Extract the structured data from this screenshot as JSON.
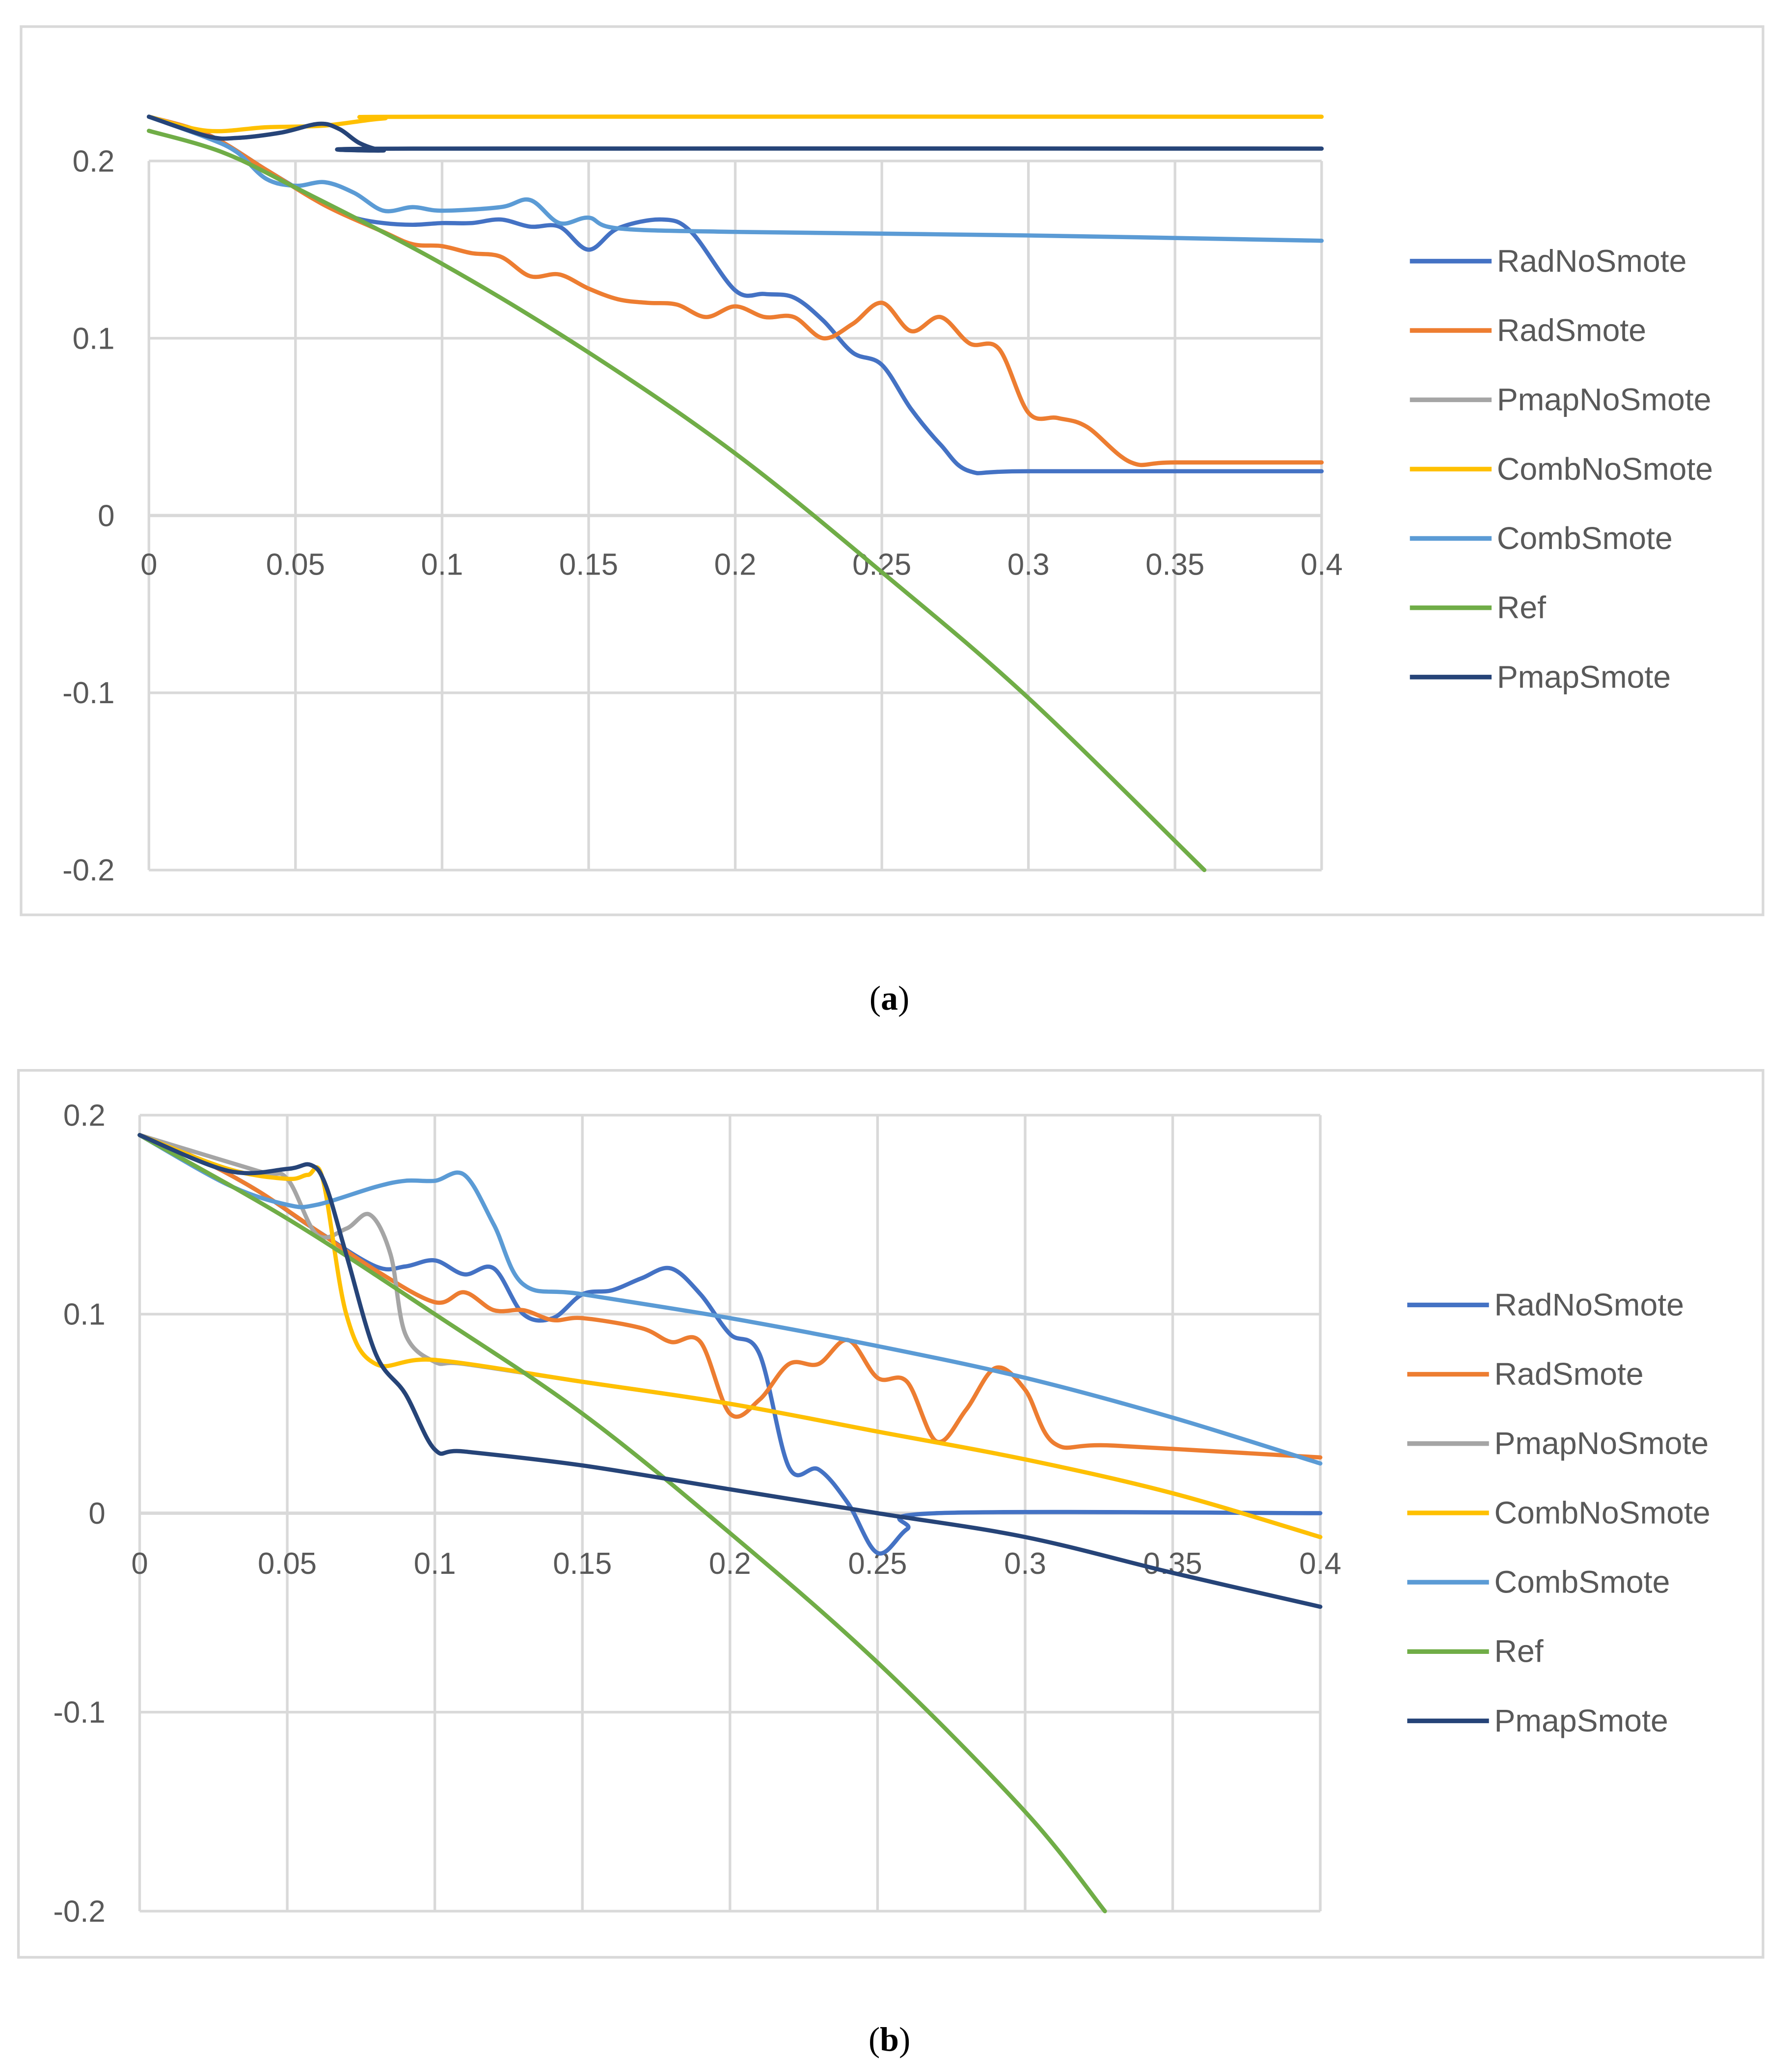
{
  "chart_data": [
    {
      "type": "line",
      "caption_open": "(",
      "caption_label": "a",
      "caption_close": ")",
      "xlim": [
        0,
        0.4
      ],
      "ylim": [
        -0.2,
        0.2
      ],
      "x_ticks": [
        "0",
        "0.05",
        "0.1",
        "0.15",
        "0.2",
        "0.25",
        "0.3",
        "0.35",
        "0.4"
      ],
      "x_tick_values": [
        0,
        0.05,
        0.1,
        0.15,
        0.2,
        0.25,
        0.3,
        0.35,
        0.4
      ],
      "y_ticks": [
        "0.2",
        "0.1",
        "0",
        "-0.1",
        "-0.2"
      ],
      "y_tick_values": [
        0.2,
        0.1,
        0,
        -0.1,
        -0.2
      ],
      "grid": true,
      "legend_position": "right",
      "series": [
        {
          "name": "RadNoSmote",
          "color": "#4472C4",
          "points": [
            [
              0,
              0.225
            ],
            [
              0.02,
              0.215
            ],
            [
              0.04,
              0.195
            ],
            [
              0.05,
              0.185
            ],
            [
              0.06,
              0.175
            ],
            [
              0.07,
              0.168
            ],
            [
              0.08,
              0.165
            ],
            [
              0.09,
              0.164
            ],
            [
              0.1,
              0.165
            ],
            [
              0.11,
              0.165
            ],
            [
              0.12,
              0.167
            ],
            [
              0.13,
              0.163
            ],
            [
              0.14,
              0.163
            ],
            [
              0.15,
              0.15
            ],
            [
              0.16,
              0.162
            ],
            [
              0.175,
              0.167
            ],
            [
              0.185,
              0.16
            ],
            [
              0.2,
              0.127
            ],
            [
              0.21,
              0.125
            ],
            [
              0.22,
              0.123
            ],
            [
              0.23,
              0.11
            ],
            [
              0.24,
              0.092
            ],
            [
              0.25,
              0.085
            ],
            [
              0.26,
              0.06
            ],
            [
              0.27,
              0.04
            ],
            [
              0.28,
              0.025
            ],
            [
              0.3,
              0.025
            ],
            [
              0.4,
              0.025
            ]
          ]
        },
        {
          "name": "RadSmote",
          "color": "#ED7D31",
          "points": [
            [
              0,
              0.225
            ],
            [
              0.02,
              0.215
            ],
            [
              0.04,
              0.195
            ],
            [
              0.06,
              0.175
            ],
            [
              0.08,
              0.16
            ],
            [
              0.09,
              0.153
            ],
            [
              0.1,
              0.152
            ],
            [
              0.11,
              0.148
            ],
            [
              0.12,
              0.146
            ],
            [
              0.13,
              0.135
            ],
            [
              0.14,
              0.136
            ],
            [
              0.15,
              0.128
            ],
            [
              0.16,
              0.122
            ],
            [
              0.17,
              0.12
            ],
            [
              0.18,
              0.119
            ],
            [
              0.19,
              0.112
            ],
            [
              0.2,
              0.118
            ],
            [
              0.21,
              0.112
            ],
            [
              0.22,
              0.112
            ],
            [
              0.23,
              0.1
            ],
            [
              0.24,
              0.108
            ],
            [
              0.25,
              0.12
            ],
            [
              0.26,
              0.104
            ],
            [
              0.27,
              0.112
            ],
            [
              0.28,
              0.097
            ],
            [
              0.29,
              0.094
            ],
            [
              0.3,
              0.058
            ],
            [
              0.31,
              0.055
            ],
            [
              0.32,
              0.05
            ],
            [
              0.335,
              0.03
            ],
            [
              0.35,
              0.03
            ],
            [
              0.4,
              0.03
            ]
          ]
        },
        {
          "name": "PmapNoSmote",
          "color": "#A5A5A5",
          "points": [
            [
              0,
              0.225
            ],
            [
              0.02,
              0.214
            ],
            [
              0.03,
              0.213
            ],
            [
              0.045,
              0.216
            ],
            [
              0.058,
              0.221
            ],
            [
              0.065,
              0.218
            ],
            [
              0.072,
              0.21
            ],
            [
              0.08,
              0.206
            ],
            [
              0.09,
              0.207
            ],
            [
              0.4,
              0.207
            ]
          ]
        },
        {
          "name": "CombNoSmote",
          "color": "#FFC000",
          "points": [
            [
              0,
              0.225
            ],
            [
              0.02,
              0.217
            ],
            [
              0.04,
              0.219
            ],
            [
              0.06,
              0.22
            ],
            [
              0.08,
              0.224
            ],
            [
              0.1,
              0.225
            ],
            [
              0.4,
              0.225
            ]
          ]
        },
        {
          "name": "CombSmote",
          "color": "#5B9BD5",
          "points": [
            [
              0,
              0.225
            ],
            [
              0.02,
              0.213
            ],
            [
              0.03,
              0.205
            ],
            [
              0.04,
              0.19
            ],
            [
              0.05,
              0.186
            ],
            [
              0.06,
              0.188
            ],
            [
              0.07,
              0.182
            ],
            [
              0.08,
              0.172
            ],
            [
              0.09,
              0.174
            ],
            [
              0.1,
              0.172
            ],
            [
              0.12,
              0.174
            ],
            [
              0.13,
              0.178
            ],
            [
              0.14,
              0.165
            ],
            [
              0.15,
              0.168
            ],
            [
              0.16,
              0.162
            ],
            [
              0.2,
              0.16
            ],
            [
              0.3,
              0.158
            ],
            [
              0.4,
              0.155
            ]
          ]
        },
        {
          "name": "Ref",
          "color": "#70AD47",
          "points": [
            [
              0,
              0.217
            ],
            [
              0.025,
              0.205
            ],
            [
              0.05,
              0.185
            ],
            [
              0.1,
              0.142
            ],
            [
              0.15,
              0.092
            ],
            [
              0.2,
              0.035
            ],
            [
              0.25,
              -0.032
            ],
            [
              0.3,
              -0.103
            ],
            [
              0.36,
              -0.2
            ]
          ]
        },
        {
          "name": "PmapSmote",
          "color": "#264478",
          "points": [
            [
              0,
              0.225
            ],
            [
              0.02,
              0.214
            ],
            [
              0.03,
              0.213
            ],
            [
              0.045,
              0.216
            ],
            [
              0.058,
              0.221
            ],
            [
              0.065,
              0.218
            ],
            [
              0.072,
              0.21
            ],
            [
              0.08,
              0.206
            ],
            [
              0.09,
              0.207
            ],
            [
              0.4,
              0.207
            ]
          ]
        }
      ]
    },
    {
      "type": "line",
      "caption_open": "(",
      "caption_label": "b",
      "caption_close": ")",
      "xlim": [
        0,
        0.4
      ],
      "ylim": [
        -0.2,
        0.2
      ],
      "x_ticks": [
        "0",
        "0.05",
        "0.1",
        "0.15",
        "0.2",
        "0.25",
        "0.3",
        "0.35",
        "0.4"
      ],
      "x_tick_values": [
        0,
        0.05,
        0.1,
        0.15,
        0.2,
        0.25,
        0.3,
        0.35,
        0.4
      ],
      "y_ticks": [
        "0.2",
        "0.1",
        "0",
        "-0.1",
        "-0.2"
      ],
      "y_tick_values": [
        0.2,
        0.1,
        0,
        -0.1,
        -0.2
      ],
      "grid": true,
      "legend_position": "right",
      "series": [
        {
          "name": "RadNoSmote",
          "color": "#4472C4",
          "points": [
            [
              0,
              0.19
            ],
            [
              0.02,
              0.178
            ],
            [
              0.04,
              0.162
            ],
            [
              0.06,
              0.142
            ],
            [
              0.08,
              0.124
            ],
            [
              0.09,
              0.124
            ],
            [
              0.1,
              0.127
            ],
            [
              0.11,
              0.12
            ],
            [
              0.12,
              0.123
            ],
            [
              0.13,
              0.1
            ],
            [
              0.14,
              0.098
            ],
            [
              0.15,
              0.11
            ],
            [
              0.16,
              0.112
            ],
            [
              0.17,
              0.118
            ],
            [
              0.18,
              0.123
            ],
            [
              0.19,
              0.11
            ],
            [
              0.2,
              0.09
            ],
            [
              0.21,
              0.08
            ],
            [
              0.22,
              0.023
            ],
            [
              0.23,
              0.022
            ],
            [
              0.24,
              0.005
            ],
            [
              0.25,
              -0.02
            ],
            [
              0.26,
              -0.008
            ],
            [
              0.27,
              0
            ],
            [
              0.4,
              0
            ]
          ]
        },
        {
          "name": "RadSmote",
          "color": "#ED7D31",
          "points": [
            [
              0,
              0.19
            ],
            [
              0.02,
              0.178
            ],
            [
              0.04,
              0.162
            ],
            [
              0.06,
              0.142
            ],
            [
              0.08,
              0.122
            ],
            [
              0.1,
              0.106
            ],
            [
              0.11,
              0.111
            ],
            [
              0.12,
              0.102
            ],
            [
              0.13,
              0.102
            ],
            [
              0.14,
              0.097
            ],
            [
              0.15,
              0.098
            ],
            [
              0.17,
              0.093
            ],
            [
              0.18,
              0.086
            ],
            [
              0.19,
              0.086
            ],
            [
              0.2,
              0.05
            ],
            [
              0.21,
              0.057
            ],
            [
              0.22,
              0.075
            ],
            [
              0.23,
              0.075
            ],
            [
              0.24,
              0.087
            ],
            [
              0.25,
              0.068
            ],
            [
              0.26,
              0.066
            ],
            [
              0.27,
              0.036
            ],
            [
              0.28,
              0.052
            ],
            [
              0.29,
              0.073
            ],
            [
              0.3,
              0.062
            ],
            [
              0.31,
              0.035
            ],
            [
              0.33,
              0.034
            ],
            [
              0.4,
              0.028
            ]
          ]
        },
        {
          "name": "PmapNoSmote",
          "color": "#A5A5A5",
          "points": [
            [
              0,
              0.19
            ],
            [
              0.04,
              0.172
            ],
            [
              0.05,
              0.168
            ],
            [
              0.06,
              0.14
            ],
            [
              0.07,
              0.143
            ],
            [
              0.078,
              0.15
            ],
            [
              0.085,
              0.13
            ],
            [
              0.09,
              0.09
            ],
            [
              0.1,
              0.076
            ],
            [
              0.11,
              0.075
            ],
            [
              0.15,
              0.066
            ],
            [
              0.2,
              0.055
            ],
            [
              0.25,
              0.041
            ],
            [
              0.3,
              0.027
            ],
            [
              0.35,
              0.01
            ],
            [
              0.4,
              -0.012
            ]
          ]
        },
        {
          "name": "CombNoSmote",
          "color": "#FFC000",
          "points": [
            [
              0,
              0.19
            ],
            [
              0.03,
              0.173
            ],
            [
              0.05,
              0.168
            ],
            [
              0.057,
              0.17
            ],
            [
              0.062,
              0.168
            ],
            [
              0.07,
              0.1
            ],
            [
              0.08,
              0.075
            ],
            [
              0.1,
              0.077
            ],
            [
              0.15,
              0.066
            ],
            [
              0.2,
              0.055
            ],
            [
              0.25,
              0.041
            ],
            [
              0.3,
              0.027
            ],
            [
              0.35,
              0.01
            ],
            [
              0.4,
              -0.012
            ]
          ]
        },
        {
          "name": "CombSmote",
          "color": "#5B9BD5",
          "points": [
            [
              0,
              0.19
            ],
            [
              0.03,
              0.165
            ],
            [
              0.05,
              0.155
            ],
            [
              0.06,
              0.155
            ],
            [
              0.08,
              0.164
            ],
            [
              0.09,
              0.167
            ],
            [
              0.1,
              0.167
            ],
            [
              0.11,
              0.17
            ],
            [
              0.12,
              0.145
            ],
            [
              0.13,
              0.115
            ],
            [
              0.15,
              0.11
            ],
            [
              0.2,
              0.098
            ],
            [
              0.25,
              0.084
            ],
            [
              0.3,
              0.068
            ],
            [
              0.35,
              0.048
            ],
            [
              0.4,
              0.025
            ]
          ]
        },
        {
          "name": "Ref",
          "color": "#70AD47",
          "points": [
            [
              0,
              0.19
            ],
            [
              0.05,
              0.148
            ],
            [
              0.1,
              0.1
            ],
            [
              0.15,
              0.05
            ],
            [
              0.2,
              -0.01
            ],
            [
              0.25,
              -0.075
            ],
            [
              0.3,
              -0.15
            ],
            [
              0.327,
              -0.2
            ]
          ]
        },
        {
          "name": "PmapSmote",
          "color": "#264478",
          "points": [
            [
              0,
              0.19
            ],
            [
              0.03,
              0.172
            ],
            [
              0.05,
              0.173
            ],
            [
              0.058,
              0.175
            ],
            [
              0.063,
              0.165
            ],
            [
              0.07,
              0.13
            ],
            [
              0.08,
              0.08
            ],
            [
              0.09,
              0.06
            ],
            [
              0.1,
              0.032
            ],
            [
              0.11,
              0.031
            ],
            [
              0.15,
              0.024
            ],
            [
              0.2,
              0.012
            ],
            [
              0.25,
              0
            ],
            [
              0.3,
              -0.012
            ],
            [
              0.35,
              -0.03
            ],
            [
              0.4,
              -0.047
            ]
          ]
        }
      ]
    }
  ]
}
